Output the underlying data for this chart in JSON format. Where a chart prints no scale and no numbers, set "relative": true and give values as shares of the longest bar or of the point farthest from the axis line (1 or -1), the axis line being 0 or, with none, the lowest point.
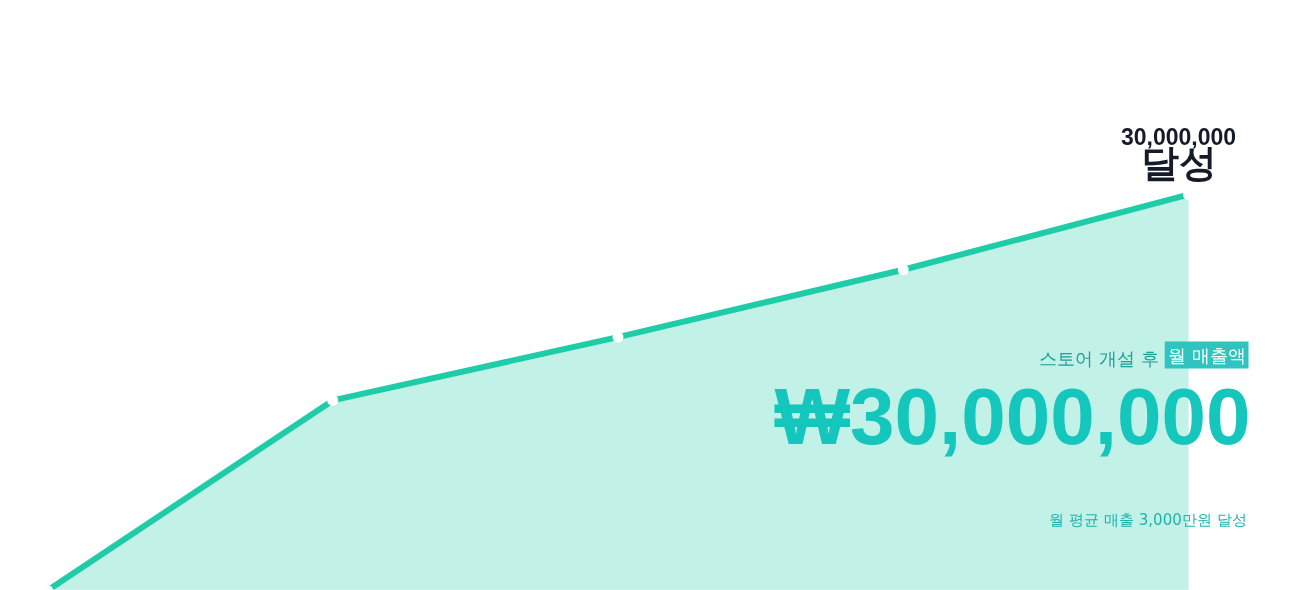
{
  "chart_data": {
    "type": "area",
    "relative": true,
    "categories": [
      null,
      null,
      null,
      null,
      null
    ],
    "series": [
      {
        "color": "#1fcca8",
        "values": [
          0,
          0.48,
          0.64,
          0.81,
          1
        ]
      }
    ],
    "marker": "circle",
    "annotations": [
      "30,000,000",
      "달성",
      "스토어 개설 후",
      "월 매출액",
      "₩30,000,000",
      "월 평균 매출 3,000만원 달성"
    ]
  }
}
